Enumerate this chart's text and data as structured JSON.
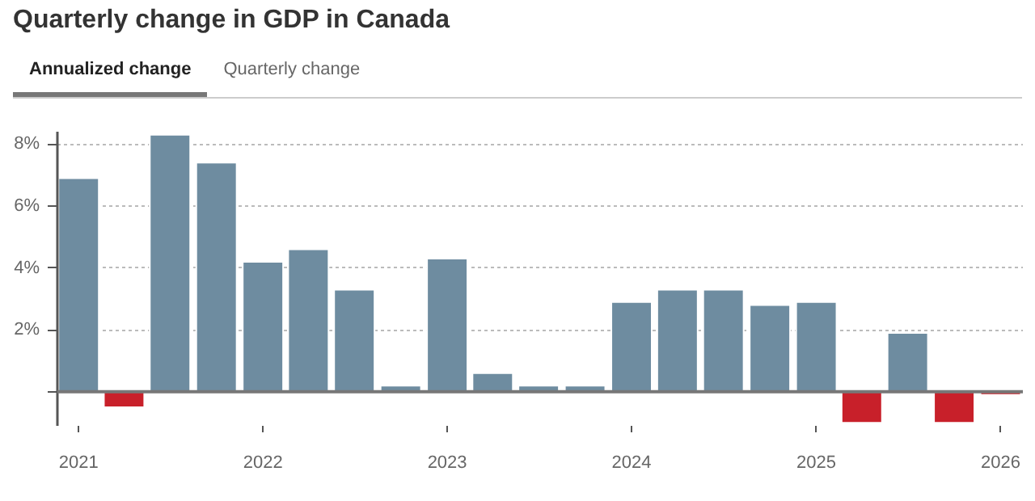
{
  "chart_data": {
    "type": "bar",
    "title": "Quarterly change in GDP in Canada",
    "annotations": [
      "Annualized change",
      "Quarterly change"
    ],
    "x": [
      "2021-01-01",
      "2021-04-01",
      "2021-07-01",
      "2021-10-01",
      "2022-01-01",
      "2022-04-01",
      "2022-07-01",
      "2022-10-01",
      "2023-01-01",
      "2023-04-01",
      "2023-07-01",
      "2023-10-01",
      "2024-01-01",
      "2024-04-01",
      "2024-07-01",
      "2024-10-01",
      "2025-01-01",
      "2025-04-01",
      "2025-07-01",
      "2025-10-01",
      "2026-01-01"
    ],
    "values": [
      6.9,
      -0.5,
      8.3,
      7.4,
      4.2,
      4.6,
      3.3,
      0.2,
      4.3,
      0.6,
      0.2,
      0.2,
      2.9,
      3.3,
      3.3,
      2.8,
      2.9,
      -1.0,
      1.9,
      -1.0,
      -0.1
    ],
    "colors": [
      "#6e8ca0",
      "#c8202a",
      "#6e8ca0",
      "#6e8ca0",
      "#6e8ca0",
      "#6e8ca0",
      "#6e8ca0",
      "#6e8ca0",
      "#6e8ca0",
      "#6e8ca0",
      "#6e8ca0",
      "#6e8ca0",
      "#6e8ca0",
      "#6e8ca0",
      "#6e8ca0",
      "#6e8ca0",
      "#6e8ca0",
      "#c8202a",
      "#6e8ca0",
      "#c8202a",
      "#c8202a"
    ],
    "xlim": [
      "2020-11-20",
      "2026-02-14"
    ],
    "xticks": [
      {
        "value": "2021-01-01",
        "label": "2021"
      },
      {
        "value": "2022-01-01",
        "label": "2022"
      },
      {
        "value": "2023-01-01",
        "label": "2023"
      },
      {
        "value": "2024-01-01",
        "label": "2024"
      },
      {
        "value": "2025-01-01",
        "label": "2025"
      },
      {
        "value": "2026-01-01",
        "label": "2026"
      }
    ],
    "ylim": [
      -1.1,
      8.4
    ],
    "yticks": [
      {
        "value": 0,
        "label": null
      },
      {
        "value": 2,
        "label": "2%"
      },
      {
        "value": 4,
        "label": "4%"
      },
      {
        "value": 6,
        "label": "6%"
      },
      {
        "value": 8,
        "label": "8%"
      }
    ],
    "ref_lines": [
      {
        "axis": "y",
        "value": 0,
        "color": "#777777"
      }
    ],
    "grid": "y"
  }
}
